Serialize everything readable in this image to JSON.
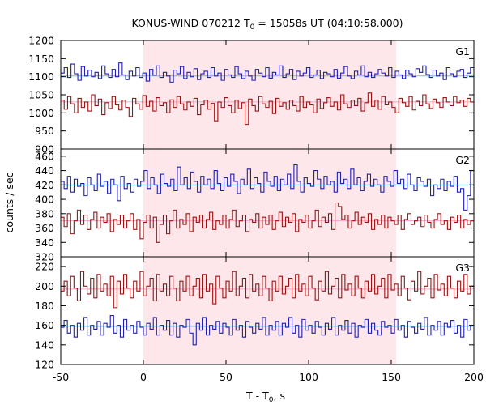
{
  "chart_data": {
    "type": "line",
    "title_main": "KONUS-WIND 070212 T",
    "title_sub": "0",
    "title_rest": " = 15058s UT (04:10:58.000)",
    "xlabel_main": "T - T",
    "xlabel_sub": "0",
    "xlabel_rest": ", s",
    "ylabel": "counts / sec",
    "xlim": [
      -50,
      200
    ],
    "xticks": [
      -50,
      0,
      50,
      100,
      150,
      200
    ],
    "highlight_region": [
      0,
      153
    ],
    "colors": {
      "blue_series": "#1f1fb4",
      "red_series": "#a01010",
      "blue_background": "#5fc6e8",
      "red_background": "#f4a6c8",
      "region_fill": "#fde7ea"
    },
    "panels": [
      {
        "label": "G1",
        "ylim": [
          900,
          1200
        ],
        "yticks": [
          900,
          950,
          1000,
          1050,
          1100,
          1150,
          1200
        ],
        "blue_background_level": 1102,
        "red_background_level": 1030,
        "blue_values": [
          1110,
          1125,
          1098,
          1135,
          1108,
          1090,
          1128,
          1102,
          1118,
          1100,
          1112,
          1095,
          1130,
          1108,
          1098,
          1120,
          1100,
          1138,
          1105,
          1092,
          1115,
          1102,
          1125,
          1098,
          1110,
          1088,
          1120,
          1104,
          1130,
          1098,
          1112,
          1102,
          1085,
          1118,
          1108,
          1128,
          1095,
          1112,
          1100,
          1122,
          1092,
          1108,
          1115,
          1098,
          1125,
          1102,
          1110,
          1090,
          1120,
          1105,
          1098,
          1128,
          1108,
          1095,
          1115,
          1102,
          1090,
          1120,
          1110,
          1100,
          1125,
          1096,
          1112,
          1105,
          1130,
          1098,
          1108,
          1120,
          1092,
          1115,
          1102,
          1110,
          1125,
          1098,
          1105,
          1118,
          1095,
          1112,
          1108,
          1100,
          1120,
          1096,
          1110,
          1128,
          1102,
          1095,
          1115,
          1105,
          1130,
          1100,
          1112,
          1098,
          1108,
          1120,
          1110,
          1102,
          1125,
          1098,
          1115,
          1105,
          1095,
          1118,
          1108,
          1100,
          1122,
          1112,
          1130,
          1106,
          1098,
          1118,
          1102,
          1110,
          1092,
          1125,
          1108,
          1100,
          1115,
          1120,
          1098,
          1110,
          1125
        ],
        "red_values": [
          1035,
          1010,
          1045,
          1025,
          1000,
          1040,
          1015,
          1030,
          1005,
          1050,
          1020,
          1038,
          995,
          1028,
          1012,
          1045,
          1022,
          1008,
          1035,
          1015,
          990,
          1040,
          1025,
          1010,
          1048,
          1018,
          1032,
          1005,
          1042,
          1020,
          1028,
          1000,
          1036,
          1015,
          1045,
          1025,
          1008,
          1030,
          1018,
          1040,
          995,
          1022,
          1035,
          1010,
          1026,
          978,
          1030,
          1015,
          1042,
          1020,
          1000,
          1035,
          1012,
          1028,
          968,
          1038,
          1020,
          1005,
          1045,
          1025,
          1015,
          1032,
          998,
          1040,
          1018,
          1028,
          1010,
          1035,
          1020,
          1005,
          1045,
          1015,
          1030,
          1022,
          1000,
          1038,
          1012,
          1028,
          1042,
          1018,
          1030,
          1008,
          1050,
          1025,
          1015,
          1035,
          1020,
          1040,
          1005,
          1028,
          1055,
          1018,
          1035,
          1010,
          1045,
          1022,
          1030,
          1015,
          1000,
          1040,
          1028,
          1018,
          1045,
          1008,
          1032,
          1020,
          1050,
          1025,
          1012,
          1038,
          1028,
          1015,
          1042,
          1030,
          1020,
          1045,
          1028,
          1035,
          1018,
          1040,
          1030
        ]
      },
      {
        "label": "G2",
        "ylim": [
          320,
          470
        ],
        "yticks": [
          320,
          340,
          360,
          380,
          400,
          420,
          440,
          460
        ],
        "blue_background_level": 420,
        "red_background_level": 370,
        "blue_values": [
          425,
          415,
          432,
          410,
          428,
          418,
          422,
          405,
          430,
          420,
          412,
          435,
          418,
          425,
          408,
          428,
          420,
          398,
          432,
          415,
          422,
          410,
          428,
          418,
          425,
          440,
          415,
          430,
          420,
          408,
          435,
          422,
          418,
          428,
          412,
          445,
          420,
          430,
          415,
          438,
          425,
          410,
          432,
          420,
          428,
          415,
          440,
          422,
          412,
          430,
          418,
          435,
          425,
          408,
          428,
          420,
          442,
          415,
          430,
          422,
          410,
          438,
          425,
          418,
          432,
          412,
          428,
          420,
          435,
          415,
          448,
          425,
          410,
          430,
          422,
          418,
          440,
          428,
          415,
          432,
          420,
          425,
          410,
          438,
          422,
          428,
          415,
          442,
          420,
          430,
          412,
          425,
          435,
          418,
          428,
          420,
          410,
          432,
          425,
          418,
          440,
          422,
          428,
          415,
          435,
          420,
          412,
          430,
          425,
          418,
          428,
          405,
          420,
          415,
          428,
          412,
          425,
          418,
          432,
          410,
          415,
          385,
          405,
          440
        ],
        "red_values": [
          375,
          362,
          380,
          352,
          370,
          385,
          365,
          378,
          358,
          372,
          382,
          360,
          375,
          368,
          380,
          355,
          372,
          365,
          378,
          360,
          370,
          380,
          358,
          372,
          345,
          368,
          378,
          360,
          375,
          340,
          365,
          378,
          352,
          370,
          385,
          360,
          372,
          365,
          380,
          355,
          375,
          368,
          378,
          360,
          372,
          382,
          358,
          370,
          365,
          378,
          360,
          372,
          385,
          362,
          370,
          378,
          355,
          372,
          368,
          380,
          360,
          375,
          365,
          378,
          358,
          370,
          382,
          362,
          375,
          368,
          380,
          355,
          372,
          368,
          378,
          360,
          370,
          385,
          362,
          375,
          368,
          380,
          358,
          395,
          390,
          372,
          378,
          360,
          370,
          382,
          365,
          375,
          368,
          380,
          358,
          372,
          365,
          378,
          360,
          375,
          370,
          365,
          378,
          358,
          372,
          380,
          365,
          370,
          375,
          362,
          378,
          368,
          360,
          372,
          380,
          365,
          370,
          358,
          375,
          368,
          378,
          360,
          372,
          365,
          370
        ]
      },
      {
        "label": "G3",
        "ylim": [
          120,
          230
        ],
        "yticks": [
          120,
          140,
          160,
          180,
          200,
          220
        ],
        "blue_background_level": 159,
        "red_background_level": 197,
        "blue_values": [
          158,
          165,
          152,
          160,
          148,
          162,
          155,
          168,
          150,
          160,
          156,
          164,
          150,
          162,
          158,
          170,
          152,
          160,
          148,
          166,
          155,
          160,
          152,
          164,
          158,
          150,
          162,
          156,
          168,
          150,
          160,
          155,
          165,
          150,
          162,
          148,
          160,
          158,
          166,
          152,
          140,
          162,
          155,
          168,
          150,
          160,
          156,
          164,
          152,
          162,
          158,
          150,
          166,
          155,
          160,
          148,
          164,
          158,
          152,
          162,
          156,
          168,
          150,
          160,
          155,
          164,
          150,
          162,
          158,
          168,
          152,
          160,
          148,
          166,
          155,
          160,
          152,
          164,
          158,
          150,
          162,
          156,
          168,
          150,
          160,
          155,
          165,
          152,
          162,
          148,
          160,
          158,
          166,
          152,
          162,
          155,
          150,
          164,
          158,
          160,
          152,
          166,
          155,
          160,
          148,
          164,
          158,
          152,
          162,
          156,
          168,
          150,
          160,
          155,
          164,
          150,
          162,
          158,
          165,
          152,
          160,
          148,
          166,
          155,
          160
        ],
        "red_values": [
          195,
          205,
          190,
          210,
          198,
          185,
          215,
          200,
          192,
          208,
          188,
          212,
          195,
          202,
          190,
          210,
          178,
          205,
          192,
          212,
          198,
          188,
          205,
          195,
          215,
          190,
          200,
          208,
          185,
          212,
          195,
          202,
          190,
          210,
          198,
          185,
          205,
          195,
          210,
          190,
          200,
          208,
          188,
          212,
          195,
          202,
          182,
          210,
          198,
          188,
          205,
          195,
          215,
          190,
          200,
          208,
          188,
          212,
          195,
          202,
          190,
          210,
          198,
          185,
          205,
          195,
          210,
          192,
          200,
          208,
          188,
          212,
          195,
          202,
          190,
          210,
          198,
          186,
          205,
          195,
          215,
          192,
          200,
          208,
          188,
          212,
          196,
          202,
          190,
          210,
          198,
          188,
          205,
          195,
          212,
          192,
          200,
          208,
          188,
          212,
          196,
          202,
          190,
          210,
          198,
          186,
          205,
          195,
          215,
          192,
          200,
          208,
          188,
          212,
          196,
          202,
          190,
          210,
          198,
          188,
          205,
          195,
          212,
          192,
          200
        ]
      }
    ]
  }
}
